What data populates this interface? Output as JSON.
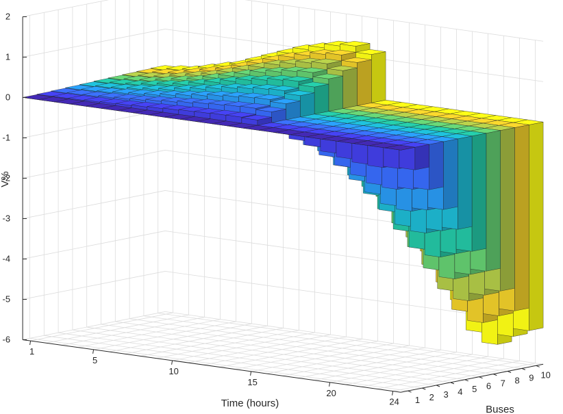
{
  "chart_data": {
    "type": "bar3",
    "xlabel": "Time (hours)",
    "ylabel": "Buses",
    "zlabel": "V%",
    "x_ticks": [
      "1",
      "5",
      "10",
      "15",
      "20",
      "24"
    ],
    "y_ticks": [
      "1",
      "2",
      "3",
      "4",
      "5",
      "6",
      "7",
      "8",
      "9",
      "10"
    ],
    "z_ticks": [
      "2",
      "1",
      "0",
      "-1",
      "-2",
      "-3",
      "-4",
      "-5",
      "-6"
    ],
    "xlim": [
      1,
      24
    ],
    "ylim": [
      1,
      10
    ],
    "zlim": [
      -6,
      2
    ],
    "grid": true,
    "colormap": [
      "#3e26a8",
      "#4245f4",
      "#2e87f7",
      "#1cb3d4",
      "#24c29a",
      "#81cc59",
      "#e5bb2f",
      "#f8f915"
    ],
    "hours": [
      1,
      2,
      3,
      4,
      5,
      6,
      7,
      8,
      9,
      10,
      11,
      12,
      13,
      14,
      15,
      16,
      17,
      18,
      19,
      20,
      21,
      22,
      23,
      24
    ],
    "bus_scale": [
      0,
      0.11,
      0.22,
      0.33,
      0.44,
      0.56,
      0.67,
      0.78,
      0.89,
      1.0
    ],
    "bus10_profile": [
      0.1,
      0.15,
      0.2,
      0.3,
      0.4,
      0.5,
      0.65,
      0.8,
      0.95,
      1.1,
      1.2,
      1.3,
      1.35,
      1.2,
      -0.4,
      -1.1,
      -2.0,
      -2.9,
      -3.8,
      -4.6,
      -5.3,
      -5.55,
      -5.3,
      -5.1
    ]
  }
}
